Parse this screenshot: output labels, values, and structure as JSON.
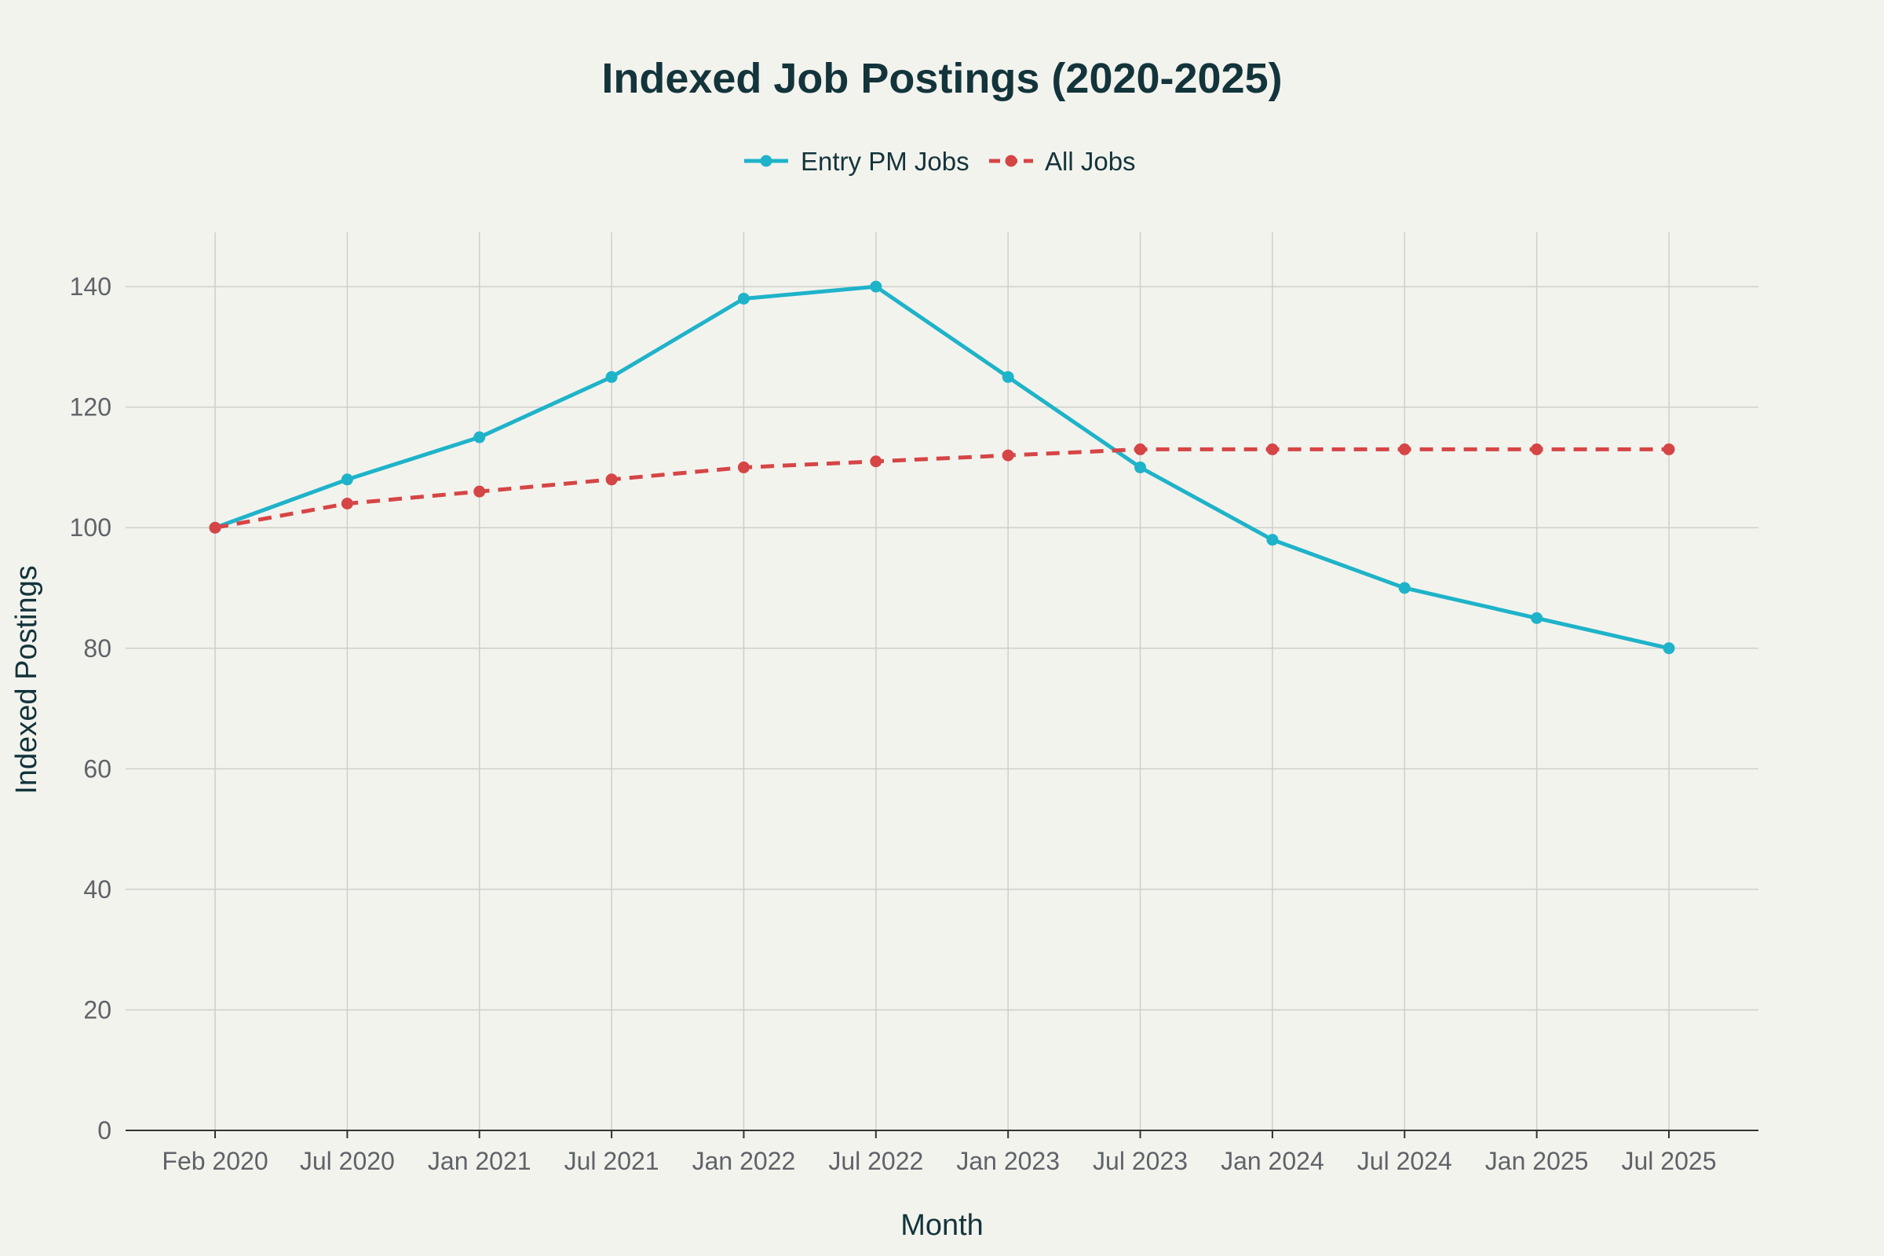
{
  "chart_data": {
    "type": "line",
    "title": "Indexed Job Postings (2020-2025)",
    "xlabel": "Month",
    "ylabel": "Indexed Postings",
    "categories": [
      "Feb 2020",
      "Jul 2020",
      "Jan 2021",
      "Jul 2021",
      "Jan 2022",
      "Jul 2022",
      "Jan 2023",
      "Jul 2023",
      "Jan 2024",
      "Jul 2024",
      "Jan 2025",
      "Jul 2025"
    ],
    "ylim": [
      0,
      149
    ],
    "yticks": [
      0,
      20,
      40,
      60,
      80,
      100,
      120,
      140
    ],
    "grid": true,
    "legend_position": "top-center",
    "series": [
      {
        "name": "Entry PM Jobs",
        "color": "#1fb3c9",
        "dash": "solid",
        "values": [
          100,
          108,
          115,
          125,
          138,
          140,
          125,
          110,
          98,
          90,
          85,
          80
        ]
      },
      {
        "name": "All Jobs",
        "color": "#d64545",
        "dash": "dash",
        "values": [
          100,
          104,
          106,
          108,
          110,
          111,
          112,
          113,
          113,
          113,
          113,
          113
        ]
      }
    ]
  }
}
